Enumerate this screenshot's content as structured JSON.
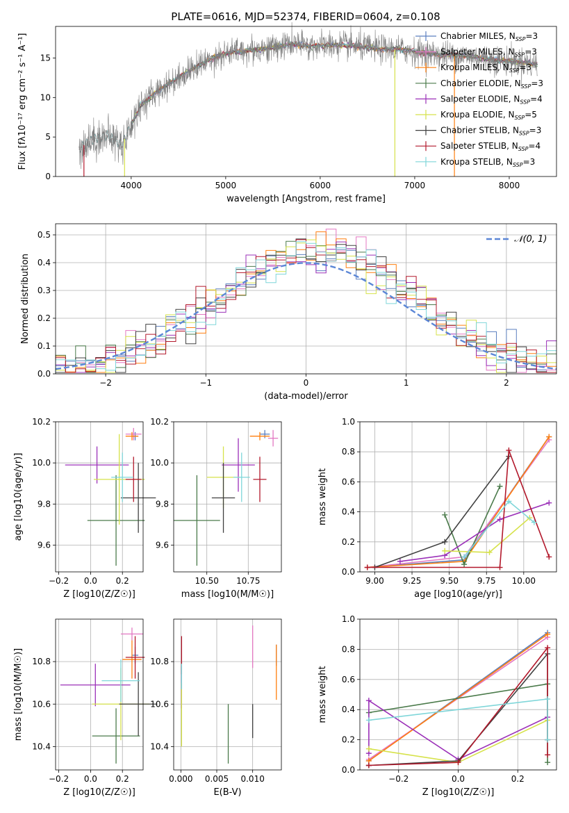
{
  "figure": {
    "title": "PLATE=0616, MJD=52374, FIBERID=0604, z=0.108"
  },
  "colors": {
    "chabrier_miles": "#5b7fbf",
    "salpeter_miles": "#e377c2",
    "kroupa_miles": "#ff7f0e",
    "chabrier_elodie": "#4a7a4a",
    "salpeter_elodie": "#9b30b8",
    "kroupa_elodie": "#d6e24a",
    "chabrier_stelib": "#404040",
    "salpeter_stelib": "#b2182b",
    "kroupa_stelib": "#7fd6d9",
    "gaussian": "#5b86d6",
    "spectrum_data": "#7f7f7f"
  },
  "chart_data": [
    {
      "id": "spectrum",
      "type": "line",
      "title": "",
      "xlabel": "wavelength [Angstrom, rest frame]",
      "ylabel": "Flux [fλ10⁻¹⁷ erg cm⁻² s⁻¹ A⁻¹]",
      "xlim": [
        3200,
        8500
      ],
      "ylim": [
        0,
        19
      ],
      "xticks": [
        4000,
        5000,
        6000,
        7000,
        8000
      ],
      "yticks": [
        0,
        5,
        10,
        15
      ],
      "grid": false,
      "legend_position": "top-right",
      "legend": [
        {
          "label": "Chabrier MILES, N",
          "sub": "SSP",
          "tail": "=3",
          "color_key": "chabrier_miles"
        },
        {
          "label": "Salpeter MILES, N",
          "sub": "SSP",
          "tail": "=3",
          "color_key": "salpeter_miles"
        },
        {
          "label": "Kroupa MILES, N",
          "sub": "SSP",
          "tail": "=3",
          "color_key": "kroupa_miles"
        },
        {
          "label": "Chabrier ELODIE, N",
          "sub": "SSP",
          "tail": "=3",
          "color_key": "chabrier_elodie"
        },
        {
          "label": "Salpeter ELODIE, N",
          "sub": "SSP",
          "tail": "=4",
          "color_key": "salpeter_elodie"
        },
        {
          "label": "Kroupa ELODIE, N",
          "sub": "SSP",
          "tail": "=5",
          "color_key": "kroupa_elodie"
        },
        {
          "label": "Chabrier STELIB, N",
          "sub": "SSP",
          "tail": "=3",
          "color_key": "chabrier_stelib"
        },
        {
          "label": "Salpeter STELIB, N",
          "sub": "SSP",
          "tail": "=4",
          "color_key": "salpeter_stelib"
        },
        {
          "label": "Kroupa STELIB, N",
          "sub": "SSP",
          "tail": "=3",
          "color_key": "kroupa_stelib"
        }
      ],
      "continuum": [
        [
          3450,
          3.6
        ],
        [
          3600,
          4.7
        ],
        [
          3750,
          5.2
        ],
        [
          3900,
          4.0
        ],
        [
          4000,
          6.5
        ],
        [
          4100,
          9.0
        ],
        [
          4300,
          11.0
        ],
        [
          4500,
          12.5
        ],
        [
          4700,
          14.0
        ],
        [
          4900,
          15.2
        ],
        [
          5100,
          15.8
        ],
        [
          5300,
          16.0
        ],
        [
          5500,
          16.3
        ],
        [
          5700,
          16.8
        ],
        [
          5900,
          16.5
        ],
        [
          6100,
          16.6
        ],
        [
          6300,
          16.6
        ],
        [
          6500,
          16.3
        ],
        [
          6700,
          16.1
        ],
        [
          6900,
          16.0
        ],
        [
          7100,
          15.6
        ],
        [
          7300,
          15.4
        ],
        [
          7500,
          15.3
        ],
        [
          7700,
          15.0
        ],
        [
          7900,
          14.7
        ],
        [
          8100,
          14.5
        ],
        [
          8300,
          14.2
        ]
      ],
      "absorption_drops": [
        {
          "wavelength": 3500,
          "color_key": "salpeter_stelib"
        },
        {
          "wavelength": 3930,
          "color_key": "kroupa_elodie"
        },
        {
          "wavelength": 6790,
          "color_key": "kroupa_elodie"
        },
        {
          "wavelength": 7420,
          "color_key": "kroupa_miles"
        }
      ]
    },
    {
      "id": "residuals",
      "type": "histogram",
      "title": "",
      "xlabel": "(data-model)/error",
      "ylabel": "Normed distribution",
      "xlim": [
        -2.5,
        2.5
      ],
      "ylim": [
        0,
        0.54
      ],
      "xticks": [
        -2,
        -1,
        0,
        1,
        2
      ],
      "yticks": [
        0,
        0.1,
        0.2,
        0.3,
        0.4,
        0.5
      ],
      "grid": true,
      "legend_position": "top-right",
      "legend": [
        {
          "label": "𝒩(0, 1)",
          "color_key": "gaussian",
          "dashed": true
        }
      ],
      "bin_width": 0.1
    },
    {
      "id": "age_vs_Z",
      "type": "errorbar",
      "xlabel": "Z [log10(Z/Z☉)]",
      "ylabel": "age  [log10(age/yr)]",
      "xlim": [
        -0.22,
        0.33
      ],
      "ylim": [
        9.47,
        10.2
      ],
      "xticks": [
        -0.2,
        0.0,
        0.2
      ],
      "yticks": [
        9.6,
        9.8,
        10.0,
        10.2
      ],
      "grid": true,
      "points": [
        {
          "x": 0.28,
          "xerr": 0.02,
          "y": 10.13,
          "yerr": 0.02,
          "color_key": "chabrier_miles"
        },
        {
          "x": 0.27,
          "xerr": 0.05,
          "y": 10.14,
          "yerr": 0.03,
          "color_key": "salpeter_miles"
        },
        {
          "x": 0.26,
          "xerr": 0.04,
          "y": 10.13,
          "yerr": 0.02,
          "color_key": "kroupa_miles"
        },
        {
          "x": 0.16,
          "xerr": 0.18,
          "y": 9.72,
          "yerr": 0.22,
          "color_key": "chabrier_elodie"
        },
        {
          "x": 0.04,
          "xerr": 0.2,
          "y": 9.99,
          "yerr": 0.09,
          "color_key": "salpeter_elodie"
        },
        {
          "x": 0.18,
          "xerr": 0.16,
          "y": 9.92,
          "yerr": 0.22,
          "color_key": "kroupa_elodie"
        },
        {
          "x": 0.3,
          "xerr": 0.11,
          "y": 9.83,
          "yerr": 0.17,
          "color_key": "chabrier_stelib"
        },
        {
          "x": 0.27,
          "xerr": 0.05,
          "y": 9.92,
          "yerr": 0.11,
          "color_key": "salpeter_stelib"
        },
        {
          "x": 0.2,
          "xerr": 0.07,
          "y": 9.93,
          "yerr": 0.12,
          "color_key": "kroupa_stelib"
        }
      ]
    },
    {
      "id": "age_vs_mass",
      "type": "errorbar",
      "xlabel": "mass [log10(M/M☉)]",
      "ylabel": "",
      "xlim": [
        10.3,
        10.95
      ],
      "ylim": [
        9.47,
        10.2
      ],
      "xticks": [
        10.5,
        10.75
      ],
      "yticks": [
        9.6,
        9.8,
        10.0,
        10.2
      ],
      "grid": true,
      "points": [
        {
          "x": 10.85,
          "xerr": 0.03,
          "y": 10.14,
          "yerr": 0.02,
          "color_key": "chabrier_miles"
        },
        {
          "x": 10.9,
          "xerr": 0.03,
          "y": 10.12,
          "yerr": 0.04,
          "color_key": "salpeter_miles"
        },
        {
          "x": 10.82,
          "xerr": 0.06,
          "y": 10.13,
          "yerr": 0.02,
          "color_key": "kroupa_miles"
        },
        {
          "x": 10.44,
          "xerr": 0.14,
          "y": 9.72,
          "yerr": 0.22,
          "color_key": "chabrier_elodie"
        },
        {
          "x": 10.69,
          "xerr": 0.1,
          "y": 9.99,
          "yerr": 0.13,
          "color_key": "salpeter_elodie"
        },
        {
          "x": 10.6,
          "xerr": 0.1,
          "y": 9.93,
          "yerr": 0.15,
          "color_key": "kroupa_elodie"
        },
        {
          "x": 10.6,
          "xerr": 0.07,
          "y": 9.83,
          "yerr": 0.17,
          "color_key": "chabrier_stelib"
        },
        {
          "x": 10.82,
          "xerr": 0.04,
          "y": 9.92,
          "yerr": 0.11,
          "color_key": "salpeter_stelib"
        },
        {
          "x": 10.71,
          "xerr": 0.05,
          "y": 9.93,
          "yerr": 0.12,
          "color_key": "kroupa_stelib"
        }
      ]
    },
    {
      "id": "weight_vs_age",
      "type": "line",
      "xlabel": "age  [log10(age/yr)]",
      "ylabel": "mass weight",
      "xlim": [
        8.9,
        10.22
      ],
      "ylim": [
        0,
        1
      ],
      "xticks": [
        9.0,
        9.25,
        9.5,
        9.75,
        10.0
      ],
      "yticks": [
        0,
        0.2,
        0.4,
        0.6,
        0.8,
        1.0
      ],
      "grid": true,
      "series": [
        {
          "color_key": "chabrier_miles",
          "x": [
            8.95,
            9.6,
            10.17
          ],
          "y": [
            0.03,
            0.08,
            0.9
          ]
        },
        {
          "color_key": "salpeter_miles",
          "x": [
            8.95,
            9.6,
            10.17
          ],
          "y": [
            0.03,
            0.1,
            0.88
          ]
        },
        {
          "color_key": "kroupa_miles",
          "x": [
            8.95,
            9.6,
            10.17
          ],
          "y": [
            0.03,
            0.07,
            0.9
          ]
        },
        {
          "color_key": "chabrier_elodie",
          "x": [
            9.47,
            9.6,
            9.84
          ],
          "y": [
            0.38,
            0.05,
            0.57
          ]
        },
        {
          "color_key": "salpeter_elodie",
          "x": [
            9.17,
            9.47,
            9.84,
            10.17
          ],
          "y": [
            0.07,
            0.11,
            0.35,
            0.46
          ]
        },
        {
          "color_key": "kroupa_elodie",
          "x": [
            9.47,
            9.77,
            10.04
          ],
          "y": [
            0.14,
            0.13,
            0.36
          ]
        },
        {
          "color_key": "chabrier_stelib",
          "x": [
            9.0,
            9.47,
            9.9
          ],
          "y": [
            0.03,
            0.2,
            0.77
          ]
        },
        {
          "color_key": "salpeter_stelib",
          "x": [
            8.95,
            9.84,
            9.9,
            10.17
          ],
          "y": [
            0.03,
            0.03,
            0.81,
            0.1
          ]
        },
        {
          "color_key": "kroupa_stelib",
          "x": [
            9.6,
            9.9,
            10.07
          ],
          "y": [
            0.1,
            0.47,
            0.33
          ]
        }
      ]
    },
    {
      "id": "mass_vs_Z",
      "type": "errorbar",
      "xlabel": "Z [log10(Z/Z☉)]",
      "ylabel": "mass [log10(M/M☉)]",
      "xlim": [
        -0.22,
        0.33
      ],
      "ylim": [
        10.29,
        11.0
      ],
      "xticks": [
        -0.2,
        0.0,
        0.2
      ],
      "yticks": [
        10.4,
        10.6,
        10.8
      ],
      "grid": true,
      "points": [
        {
          "x": 0.28,
          "xerr": 0.02,
          "y": 10.83,
          "yerr": 0.04,
          "color_key": "chabrier_miles"
        },
        {
          "x": 0.26,
          "xerr": 0.07,
          "y": 10.93,
          "yerr": 0.03,
          "color_key": "salpeter_miles"
        },
        {
          "x": 0.26,
          "xerr": 0.06,
          "y": 10.81,
          "yerr": 0.09,
          "color_key": "kroupa_miles"
        },
        {
          "x": 0.16,
          "xerr": 0.15,
          "y": 10.45,
          "yerr": 0.13,
          "color_key": "chabrier_elodie"
        },
        {
          "x": 0.03,
          "xerr": 0.22,
          "y": 10.69,
          "yerr": 0.1,
          "color_key": "salpeter_elodie"
        },
        {
          "x": 0.19,
          "xerr": 0.18,
          "y": 10.6,
          "yerr": 0.17,
          "color_key": "kroupa_elodie"
        },
        {
          "x": 0.3,
          "xerr": 0.12,
          "y": 10.6,
          "yerr": 0.15,
          "color_key": "chabrier_stelib"
        },
        {
          "x": 0.28,
          "xerr": 0.06,
          "y": 10.82,
          "yerr": 0.1,
          "color_key": "salpeter_stelib"
        },
        {
          "x": 0.19,
          "xerr": 0.12,
          "y": 10.71,
          "yerr": 0.1,
          "color_key": "kroupa_stelib"
        }
      ]
    },
    {
      "id": "mass_vs_ebv",
      "type": "errorbar",
      "xlabel": "E(B-V)",
      "ylabel": "",
      "xlim": [
        -0.001,
        0.014
      ],
      "ylim": [
        10.29,
        11.0
      ],
      "xticks": [
        0.0,
        0.005,
        0.01
      ],
      "yticks": [
        10.4,
        10.6,
        10.8
      ],
      "grid": true,
      "points": [
        {
          "x": 0.0133,
          "xerr": 0,
          "y": 10.83,
          "yerr": 0.05,
          "color_key": "chabrier_miles"
        },
        {
          "x": 0.01,
          "xerr": 0,
          "y": 10.87,
          "yerr": 0.1,
          "color_key": "salpeter_miles"
        },
        {
          "x": 0.0133,
          "xerr": 0,
          "y": 10.75,
          "yerr": 0.13,
          "color_key": "kroupa_miles"
        },
        {
          "x": 0.0066,
          "xerr": 0,
          "y": 10.46,
          "yerr": 0.14,
          "color_key": "chabrier_elodie"
        },
        {
          "x": 0.0001,
          "xerr": 0,
          "y": 10.68,
          "yerr": 0.1,
          "color_key": "salpeter_elodie"
        },
        {
          "x": 0.0001,
          "xerr": 0,
          "y": 10.55,
          "yerr": 0.15,
          "color_key": "kroupa_elodie"
        },
        {
          "x": 0.01,
          "xerr": 0,
          "y": 10.52,
          "yerr": 0.08,
          "color_key": "chabrier_stelib"
        },
        {
          "x": 0.0001,
          "xerr": 0,
          "y": 10.83,
          "yerr": 0.09,
          "color_key": "salpeter_stelib"
        },
        {
          "x": 0.0001,
          "xerr": 0,
          "y": 10.73,
          "yerr": 0.06,
          "color_key": "kroupa_stelib"
        }
      ]
    },
    {
      "id": "weight_vs_Z",
      "type": "line",
      "xlabel": "Z [log10(Z/Z☉)]",
      "ylabel": "mass weight",
      "xlim": [
        -0.33,
        0.33
      ],
      "ylim": [
        0,
        1
      ],
      "xticks": [
        -0.2,
        0.0,
        0.2
      ],
      "yticks": [
        0,
        0.2,
        0.4,
        0.6,
        0.8,
        1.0
      ],
      "grid": true,
      "series": [
        {
          "color_key": "chabrier_miles",
          "x": [
            -0.3,
            0.3
          ],
          "y": [
            0.06,
            0.91
          ]
        },
        {
          "color_key": "salpeter_miles",
          "x": [
            -0.3,
            0.3
          ],
          "y": [
            0.07,
            0.88
          ]
        },
        {
          "color_key": "kroupa_miles",
          "x": [
            -0.3,
            0.3
          ],
          "y": [
            0.06,
            0.9
          ]
        },
        {
          "color_key": "chabrier_elodie",
          "x": [
            -0.3,
            0.3,
            0.3
          ],
          "y": [
            0.38,
            0.57,
            0.05
          ]
        },
        {
          "color_key": "salpeter_elodie",
          "x": [
            -0.3,
            -0.3,
            0.0,
            0.3
          ],
          "y": [
            0.11,
            0.46,
            0.07,
            0.35
          ]
        },
        {
          "color_key": "kroupa_elodie",
          "x": [
            -0.3,
            0.0,
            0.3
          ],
          "y": [
            0.14,
            0.05,
            0.33
          ]
        },
        {
          "color_key": "chabrier_stelib",
          "x": [
            -0.3,
            0.0,
            0.3,
            0.3
          ],
          "y": [
            0.03,
            0.06,
            0.77,
            0.2
          ]
        },
        {
          "color_key": "salpeter_stelib",
          "x": [
            -0.3,
            0.0,
            0.3,
            0.3
          ],
          "y": [
            0.03,
            0.05,
            0.81,
            0.1
          ]
        },
        {
          "color_key": "kroupa_stelib",
          "x": [
            -0.3,
            0.3,
            0.3
          ],
          "y": [
            0.33,
            0.47,
            0.2
          ]
        }
      ]
    }
  ]
}
